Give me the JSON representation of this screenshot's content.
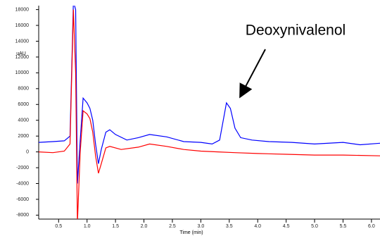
{
  "chart_data": {
    "type": "line",
    "annotation": "Deoxynivalenol",
    "ylabel": "uAU",
    "xlabel": "Time (min)",
    "xlim": [
      0.15,
      6.15
    ],
    "ylim": [
      -8500,
      18500
    ],
    "xticks": [
      0.5,
      {
        "value": 1,
        "label": "1.0"
      },
      1.5,
      {
        "value": 2,
        "label": "2.0"
      },
      2.5,
      {
        "value": 3,
        "label": "3.0"
      },
      3.5,
      {
        "value": 4,
        "label": "4.0"
      },
      4.5,
      {
        "value": 5,
        "label": "5.0"
      },
      5.5,
      {
        "value": 6,
        "label": "6.0"
      }
    ],
    "yticks": [
      18000,
      16000,
      14000,
      12000,
      10000,
      8000,
      6000,
      4000,
      2000,
      0,
      -2000,
      -4000,
      -6000,
      -8000
    ],
    "series": [
      {
        "color": "#0000ff",
        "x": [
          0.15,
          0.4,
          0.6,
          0.7,
          0.76,
          0.8,
          0.83,
          0.88,
          0.93,
          1.0,
          1.05,
          1.1,
          1.15,
          1.2,
          1.25,
          1.33,
          1.4,
          1.5,
          1.7,
          1.9,
          2.1,
          2.4,
          2.7,
          3.0,
          3.2,
          3.33,
          3.45,
          3.52,
          3.6,
          3.7,
          3.9,
          4.2,
          4.6,
          5.0,
          5.5,
          5.8,
          6.15
        ],
        "values": [
          1200,
          1300,
          1400,
          2000,
          19000,
          18000,
          -4000,
          1500,
          6800,
          6200,
          5500,
          4000,
          1000,
          -1500,
          300,
          2500,
          2800,
          2200,
          1500,
          1800,
          2200,
          1900,
          1300,
          1200,
          1000,
          1500,
          6200,
          5500,
          3000,
          1800,
          1500,
          1300,
          1200,
          1000,
          1200,
          900,
          1100
        ]
      },
      {
        "color": "#ff0000",
        "x": [
          0.15,
          0.4,
          0.6,
          0.7,
          0.76,
          0.8,
          0.83,
          0.88,
          0.93,
          1.0,
          1.05,
          1.1,
          1.15,
          1.2,
          1.25,
          1.33,
          1.4,
          1.6,
          1.9,
          2.1,
          2.4,
          2.7,
          3.0,
          3.3,
          3.6,
          4.0,
          4.5,
          5.0,
          5.5,
          6.15
        ],
        "values": [
          0,
          -100,
          100,
          1000,
          18000,
          10000,
          -9000,
          0,
          5200,
          4800,
          4200,
          2500,
          -500,
          -2700,
          -1500,
          500,
          700,
          300,
          600,
          1000,
          700,
          300,
          100,
          0,
          -100,
          -200,
          -300,
          -400,
          -400,
          -500
        ]
      }
    ]
  }
}
